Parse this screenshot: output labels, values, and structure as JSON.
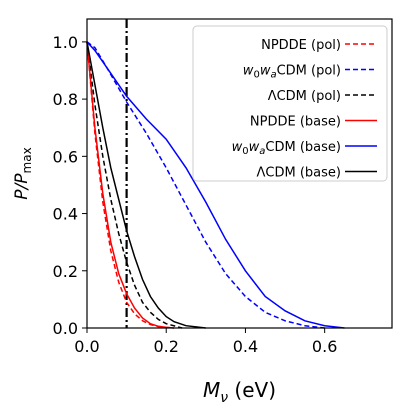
{
  "chart_data": {
    "type": "line",
    "xlabel_main": "M",
    "xlabel_sub": "ν",
    "xlabel_unit": " (eV)",
    "ylabel_main": "P/P",
    "ylabel_sub": "max",
    "xlim": [
      0.0,
      0.77
    ],
    "ylim": [
      0.0,
      1.08
    ],
    "xticks": [
      0.0,
      0.2,
      0.4,
      0.6
    ],
    "xtick_labels": [
      "0.0",
      "0.2",
      "0.4",
      "0.6"
    ],
    "yticks": [
      0.0,
      0.2,
      0.4,
      0.6,
      0.8,
      1.0
    ],
    "ytick_labels": [
      "0.0",
      "0.2",
      "0.4",
      "0.6",
      "0.8",
      "1.0"
    ],
    "vline": {
      "x": 0.1,
      "style": "dashdot",
      "color": "#000000"
    },
    "legend_position": "top-right",
    "series": [
      {
        "name": "NPDDE (pol)",
        "name_html": "NPDDE (pol)",
        "color": "#ff0000",
        "dash": true,
        "x": [
          0.0,
          0.02,
          0.04,
          0.06,
          0.08,
          0.1,
          0.12,
          0.14,
          0.16,
          0.18,
          0.2,
          0.22
        ],
        "y": [
          1.0,
          0.68,
          0.44,
          0.27,
          0.16,
          0.09,
          0.05,
          0.025,
          0.012,
          0.005,
          0.002,
          0.0
        ]
      },
      {
        "name": "w0waCDM (pol)",
        "name_html": "<tspan font-style='italic'>w</tspan><tspan font-size='10' dy='3'>0</tspan><tspan font-style='italic' dy='-3'>w</tspan><tspan font-size='10' font-style='italic' dy='3'>a</tspan><tspan dy='-3'>CDM (pol)</tspan>",
        "color": "#0000ff",
        "dash": true,
        "x": [
          0.0,
          0.02,
          0.05,
          0.1,
          0.15,
          0.2,
          0.25,
          0.3,
          0.35,
          0.4,
          0.45,
          0.5,
          0.55,
          0.6
        ],
        "y": [
          1.0,
          0.98,
          0.91,
          0.79,
          0.68,
          0.56,
          0.43,
          0.3,
          0.19,
          0.11,
          0.055,
          0.025,
          0.008,
          0.0
        ]
      },
      {
        "name": "ΛCDM (pol)",
        "name_html": "ΛCDM (pol)",
        "color": "#000000",
        "dash": true,
        "x": [
          0.0,
          0.02,
          0.04,
          0.06,
          0.08,
          0.1,
          0.12,
          0.14,
          0.16,
          0.18,
          0.2,
          0.24
        ],
        "y": [
          1.0,
          0.78,
          0.6,
          0.45,
          0.33,
          0.23,
          0.15,
          0.09,
          0.055,
          0.03,
          0.015,
          0.0
        ]
      },
      {
        "name": "NPDDE (base)",
        "name_html": "NPDDE (base)",
        "color": "#ff0000",
        "dash": false,
        "x": [
          0.0,
          0.02,
          0.04,
          0.06,
          0.08,
          0.1,
          0.12,
          0.14,
          0.16,
          0.18,
          0.2,
          0.22
        ],
        "y": [
          1.0,
          0.7,
          0.47,
          0.3,
          0.19,
          0.12,
          0.07,
          0.035,
          0.015,
          0.006,
          0.002,
          0.0
        ]
      },
      {
        "name": "w0waCDM (base)",
        "name_html": "<tspan font-style='italic'>w</tspan><tspan font-size='10' dy='3'>0</tspan><tspan font-style='italic' dy='-3'>w</tspan><tspan font-size='10' font-style='italic' dy='3'>a</tspan><tspan dy='-3'>CDM (base)</tspan>",
        "color": "#0000ff",
        "dash": false,
        "x": [
          0.0,
          0.02,
          0.05,
          0.1,
          0.15,
          0.2,
          0.25,
          0.3,
          0.35,
          0.4,
          0.45,
          0.5,
          0.55,
          0.6,
          0.65
        ],
        "y": [
          1.0,
          0.97,
          0.91,
          0.81,
          0.73,
          0.66,
          0.56,
          0.44,
          0.31,
          0.2,
          0.11,
          0.06,
          0.025,
          0.008,
          0.0
        ]
      },
      {
        "name": "ΛCDM (base)",
        "name_html": "ΛCDM (base)",
        "color": "#000000",
        "dash": false,
        "x": [
          0.0,
          0.02,
          0.04,
          0.06,
          0.08,
          0.1,
          0.12,
          0.14,
          0.16,
          0.18,
          0.2,
          0.22,
          0.25,
          0.3
        ],
        "y": [
          1.0,
          0.85,
          0.7,
          0.56,
          0.45,
          0.34,
          0.25,
          0.17,
          0.11,
          0.07,
          0.04,
          0.022,
          0.008,
          0.0
        ]
      }
    ]
  }
}
